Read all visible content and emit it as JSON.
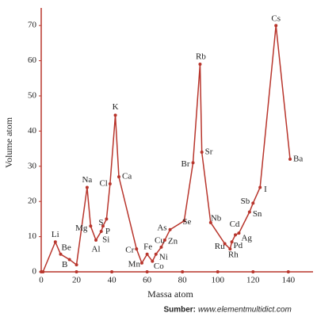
{
  "chart_data": {
    "type": "line",
    "x_label": "Massa atom",
    "y_label": "Volume atom",
    "source_label": "Sumber:",
    "source": "www.elementmultidict.com",
    "x": [
      1,
      8,
      11,
      16,
      20,
      26,
      28,
      31,
      34,
      35,
      37,
      39,
      42,
      44,
      54,
      57,
      60,
      63,
      65,
      68,
      70,
      73,
      81,
      86,
      90,
      91,
      96,
      104,
      107,
      108,
      110,
      112,
      118,
      120,
      124,
      133,
      141
    ],
    "values": [
      0,
      8.5,
      5,
      3.5,
      2,
      24,
      13,
      9,
      11.5,
      13,
      15,
      25,
      44.5,
      27,
      6.5,
      2.5,
      5,
      3,
      5,
      7,
      9,
      12,
      14.5,
      31,
      59,
      34,
      14,
      8,
      6.5,
      8.5,
      10.5,
      11,
      17,
      19.5,
      24,
      70,
      32
    ],
    "point_labels": [
      null,
      "Li",
      "Be",
      "B",
      null,
      "Na",
      "Mg",
      "Al",
      "Si",
      "P",
      "S",
      "Cl",
      "K",
      "Ca",
      "Cr",
      "Mn",
      "Fe",
      "Co",
      "Ni",
      "Cu",
      "Zn",
      "As",
      "Se",
      "Br",
      "Rb",
      "Sr",
      "Nb",
      "Ru",
      "Rh",
      "Pd",
      "Cd",
      "Ag",
      "Sn",
      "Sb",
      "I",
      "Cs",
      "Ba"
    ],
    "color": "#b8352c",
    "xlim": [
      0,
      154
    ],
    "xticks": [
      0,
      20,
      40,
      60,
      80,
      100,
      120,
      140
    ],
    "ylim": [
      0,
      75
    ],
    "yticks": [
      0,
      10,
      20,
      30,
      40,
      50,
      60,
      70
    ]
  }
}
